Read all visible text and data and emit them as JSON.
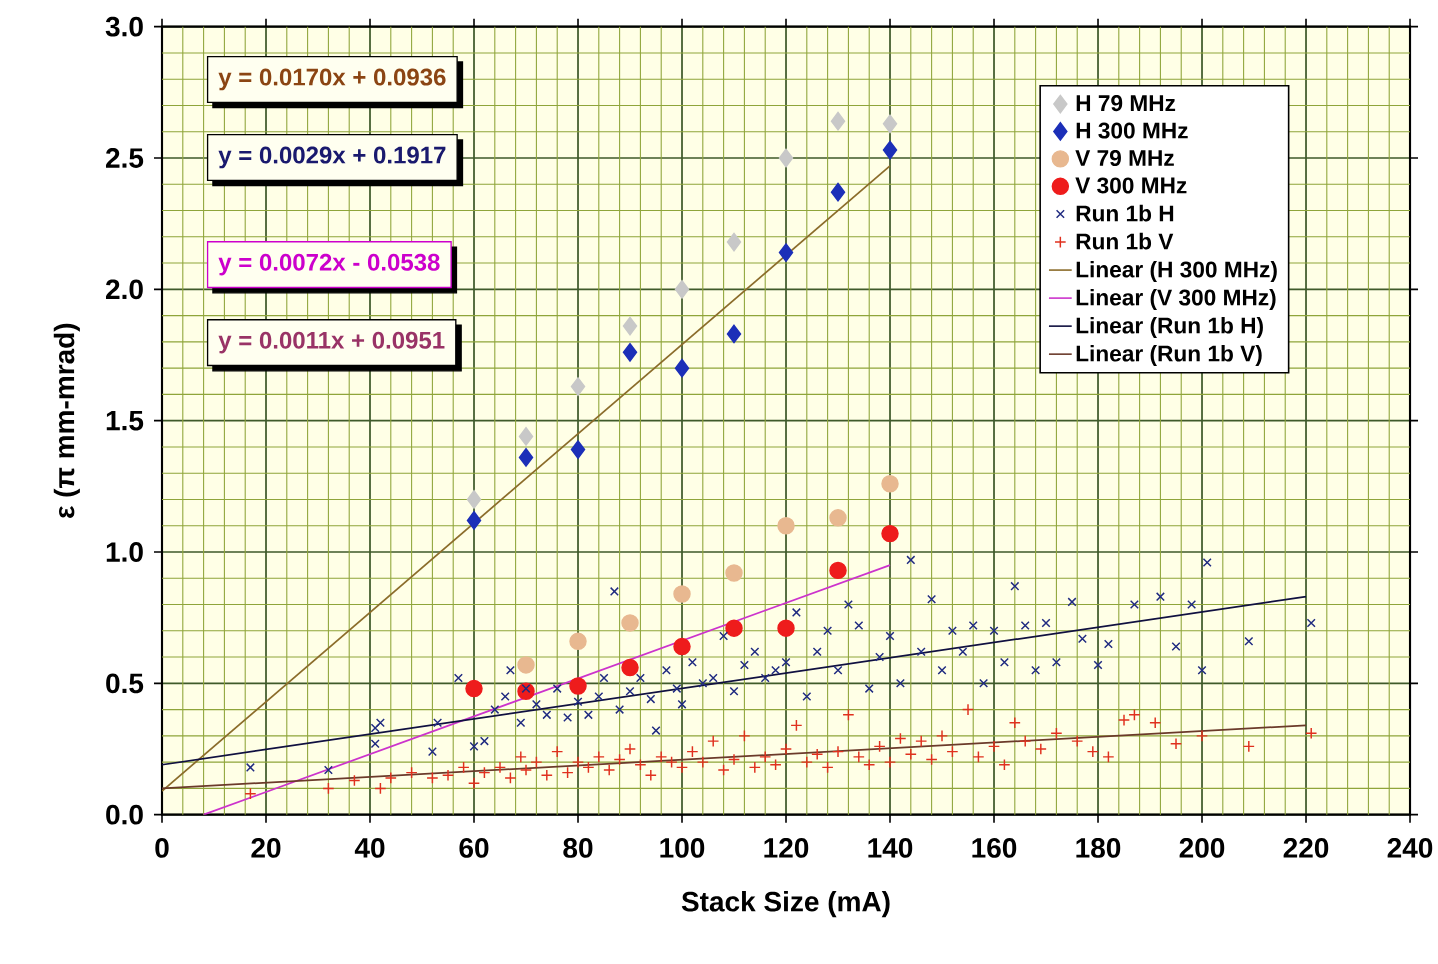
{
  "chart_data": {
    "type": "scatter",
    "xlabel": "Stack Size (mA)",
    "ylabel": "ε (π mm-mrad)",
    "xlim": [
      0,
      240
    ],
    "xticks": [
      0,
      {
        "value": 4,
        "label": null
      },
      {
        "value": 8,
        "label": null
      },
      {
        "value": 12,
        "label": null
      },
      {
        "value": 16,
        "label": null
      },
      20,
      {
        "value": 24,
        "label": null
      },
      {
        "value": 28,
        "label": null
      },
      {
        "value": 32,
        "label": null
      },
      {
        "value": 36,
        "label": null
      },
      40,
      {
        "value": 44,
        "label": null
      },
      {
        "value": 48,
        "label": null
      },
      {
        "value": 52,
        "label": null
      },
      {
        "value": 56,
        "label": null
      },
      60,
      {
        "value": 64,
        "label": null
      },
      {
        "value": 68,
        "label": null
      },
      {
        "value": 72,
        "label": null
      },
      {
        "value": 76,
        "label": null
      },
      80,
      {
        "value": 84,
        "label": null
      },
      {
        "value": 88,
        "label": null
      },
      {
        "value": 92,
        "label": null
      },
      {
        "value": 96,
        "label": null
      },
      100,
      {
        "value": 104,
        "label": null
      },
      {
        "value": 108,
        "label": null
      },
      {
        "value": 112,
        "label": null
      },
      {
        "value": 116,
        "label": null
      },
      120,
      {
        "value": 124,
        "label": null
      },
      {
        "value": 128,
        "label": null
      },
      {
        "value": 132,
        "label": null
      },
      {
        "value": 136,
        "label": null
      },
      140,
      {
        "value": 144,
        "label": null
      },
      {
        "value": 148,
        "label": null
      },
      {
        "value": 152,
        "label": null
      },
      {
        "value": 156,
        "label": null
      },
      160,
      {
        "value": 164,
        "label": null
      },
      {
        "value": 168,
        "label": null
      },
      {
        "value": 172,
        "label": null
      },
      {
        "value": 176,
        "label": null
      },
      180,
      {
        "value": 184,
        "label": null
      },
      {
        "value": 188,
        "label": null
      },
      {
        "value": 192,
        "label": null
      },
      {
        "value": 196,
        "label": null
      },
      200,
      {
        "value": 204,
        "label": null
      },
      {
        "value": 208,
        "label": null
      },
      {
        "value": 212,
        "label": null
      },
      {
        "value": 216,
        "label": null
      },
      220,
      {
        "value": 224,
        "label": null
      },
      {
        "value": 228,
        "label": null
      },
      {
        "value": 232,
        "label": null
      },
      {
        "value": 236,
        "label": null
      },
      240
    ],
    "ylim": [
      0,
      3
    ],
    "yticks": [
      {
        "value": 0,
        "label": "0.0"
      },
      {
        "value": 0.1,
        "label": null
      },
      {
        "value": 0.2,
        "label": null
      },
      {
        "value": 0.3,
        "label": null
      },
      {
        "value": 0.4,
        "label": null
      },
      {
        "value": 0.5,
        "label": "0.5"
      },
      {
        "value": 0.6,
        "label": null
      },
      {
        "value": 0.7,
        "label": null
      },
      {
        "value": 0.8,
        "label": null
      },
      {
        "value": 0.9,
        "label": null
      },
      {
        "value": 1,
        "label": "1.0"
      },
      {
        "value": 1.1,
        "label": null
      },
      {
        "value": 1.2,
        "label": null
      },
      {
        "value": 1.3,
        "label": null
      },
      {
        "value": 1.4,
        "label": null
      },
      {
        "value": 1.5,
        "label": "1.5"
      },
      {
        "value": 1.6,
        "label": null
      },
      {
        "value": 1.7,
        "label": null
      },
      {
        "value": 1.8,
        "label": null
      },
      {
        "value": 1.9,
        "label": null
      },
      {
        "value": 2,
        "label": "2.0"
      },
      {
        "value": 2.1,
        "label": null
      },
      {
        "value": 2.2,
        "label": null
      },
      {
        "value": 2.3,
        "label": null
      },
      {
        "value": 2.4,
        "label": null
      },
      {
        "value": 2.5,
        "label": "2.5"
      },
      {
        "value": 2.6,
        "label": null
      },
      {
        "value": 2.7,
        "label": null
      },
      {
        "value": 2.8,
        "label": null
      },
      {
        "value": 2.9,
        "label": null
      },
      {
        "value": 3,
        "label": "3.0"
      }
    ],
    "grid": true,
    "legend": "top right",
    "annotations": [
      "y = 0.0170x + 0.0936",
      "y = 0.0029x + 0.1917",
      "y = 0.0072x - 0.0538",
      "y = 0.0011x + 0.0951"
    ],
    "series": [
      {
        "name": "H 79 MHz",
        "marker": "diamond",
        "color": "#c8c8c8",
        "x": [
          60,
          70,
          80,
          90,
          100,
          110,
          120,
          130,
          140
        ],
        "values": [
          1.2,
          1.44,
          1.63,
          1.86,
          2.0,
          2.18,
          2.5,
          2.64,
          2.63
        ]
      },
      {
        "name": "H 300 MHz",
        "marker": "diamond",
        "color": "#1c2fb8",
        "x": [
          60,
          70,
          80,
          90,
          100,
          110,
          120,
          130,
          140
        ],
        "values": [
          1.12,
          1.36,
          1.39,
          1.76,
          1.7,
          1.83,
          2.14,
          2.37,
          2.53
        ]
      },
      {
        "name": "V 79 MHz",
        "marker": "circle",
        "color": "#e8b890",
        "x": [
          70,
          80,
          90,
          100,
          110,
          120,
          130,
          140
        ],
        "values": [
          0.57,
          0.66,
          0.73,
          0.84,
          0.92,
          1.1,
          1.13,
          1.26
        ]
      },
      {
        "name": "V 300 MHz",
        "marker": "circle",
        "color": "#ee1c1c",
        "x": [
          60,
          70,
          80,
          90,
          100,
          110,
          120,
          130,
          140
        ],
        "values": [
          0.48,
          0.47,
          0.49,
          0.56,
          0.64,
          0.71,
          0.71,
          0.93,
          1.07
        ]
      },
      {
        "name": "Run 1b H",
        "marker": "cross",
        "color": "#1f2a80",
        "x": [
          17,
          32,
          41,
          41,
          42,
          52,
          53,
          57,
          60,
          62,
          64,
          66,
          67,
          69,
          70,
          72,
          74,
          76,
          78,
          80,
          82,
          84,
          85,
          87,
          88,
          90,
          92,
          94,
          95,
          97,
          99,
          100,
          102,
          104,
          106,
          108,
          110,
          112,
          114,
          116,
          118,
          120,
          122,
          124,
          126,
          128,
          130,
          132,
          134,
          136,
          138,
          140,
          142,
          144,
          146,
          148,
          150,
          152,
          154,
          156,
          158,
          160,
          162,
          164,
          166,
          168,
          170,
          172,
          175,
          177,
          180,
          182,
          187,
          192,
          195,
          198,
          200,
          201,
          209,
          221
        ],
        "values": [
          0.18,
          0.17,
          0.33,
          0.27,
          0.35,
          0.24,
          0.35,
          0.52,
          0.26,
          0.28,
          0.4,
          0.45,
          0.55,
          0.35,
          0.48,
          0.42,
          0.38,
          0.48,
          0.37,
          0.43,
          0.38,
          0.45,
          0.52,
          0.85,
          0.4,
          0.47,
          0.52,
          0.44,
          0.32,
          0.55,
          0.48,
          0.42,
          0.58,
          0.5,
          0.52,
          0.68,
          0.47,
          0.57,
          0.62,
          0.52,
          0.55,
          0.58,
          0.77,
          0.45,
          0.62,
          0.7,
          0.55,
          0.8,
          0.72,
          0.48,
          0.6,
          0.68,
          0.5,
          0.97,
          0.62,
          0.82,
          0.55,
          0.7,
          0.62,
          0.72,
          0.5,
          0.7,
          0.58,
          0.87,
          0.72,
          0.55,
          0.73,
          0.58,
          0.81,
          0.67,
          0.57,
          0.65,
          0.8,
          0.83,
          0.64,
          0.8,
          0.55,
          0.96,
          0.66,
          0.73
        ]
      },
      {
        "name": "Run 1b V",
        "marker": "plus",
        "color": "#e0301e",
        "x": [
          17,
          32,
          37,
          42,
          44,
          48,
          52,
          55,
          58,
          60,
          62,
          65,
          67,
          69,
          70,
          72,
          74,
          76,
          78,
          80,
          82,
          84,
          86,
          88,
          90,
          92,
          94,
          96,
          98,
          100,
          102,
          104,
          106,
          108,
          110,
          112,
          114,
          116,
          118,
          120,
          122,
          124,
          126,
          128,
          130,
          132,
          134,
          136,
          138,
          140,
          142,
          144,
          146,
          148,
          150,
          152,
          155,
          157,
          160,
          162,
          164,
          166,
          169,
          172,
          176,
          179,
          182,
          185,
          187,
          191,
          195,
          200,
          209,
          221
        ],
        "values": [
          0.08,
          0.1,
          0.13,
          0.1,
          0.14,
          0.16,
          0.14,
          0.15,
          0.18,
          0.12,
          0.16,
          0.18,
          0.14,
          0.22,
          0.17,
          0.2,
          0.15,
          0.24,
          0.16,
          0.2,
          0.18,
          0.22,
          0.17,
          0.21,
          0.25,
          0.19,
          0.15,
          0.22,
          0.2,
          0.18,
          0.24,
          0.2,
          0.28,
          0.17,
          0.21,
          0.3,
          0.18,
          0.22,
          0.19,
          0.25,
          0.34,
          0.2,
          0.23,
          0.18,
          0.24,
          0.38,
          0.22,
          0.19,
          0.26,
          0.2,
          0.29,
          0.23,
          0.28,
          0.21,
          0.3,
          0.24,
          0.4,
          0.22,
          0.26,
          0.19,
          0.35,
          0.28,
          0.25,
          0.31,
          0.28,
          0.24,
          0.22,
          0.36,
          0.38,
          0.35,
          0.27,
          0.3,
          0.26,
          0.31
        ]
      },
      {
        "name": "Linear (H 300 MHz)",
        "type": "line",
        "color": "#8b6c2a",
        "x": [
          0,
          140
        ],
        "values": [
          0.09,
          2.47
        ]
      },
      {
        "name": "Linear (V 300 MHz)",
        "type": "line",
        "color": "#cc33cc",
        "x": [
          8,
          140
        ],
        "values": [
          0,
          0.95
        ]
      },
      {
        "name": "Linear (Run 1b H)",
        "type": "line",
        "color": "#101040",
        "x": [
          0,
          220
        ],
        "values": [
          0.19,
          0.83
        ]
      },
      {
        "name": "Linear (Run 1b V)",
        "type": "line",
        "color": "#6b3a2a",
        "x": [
          0,
          220
        ],
        "values": [
          0.1,
          0.34
        ]
      }
    ]
  }
}
